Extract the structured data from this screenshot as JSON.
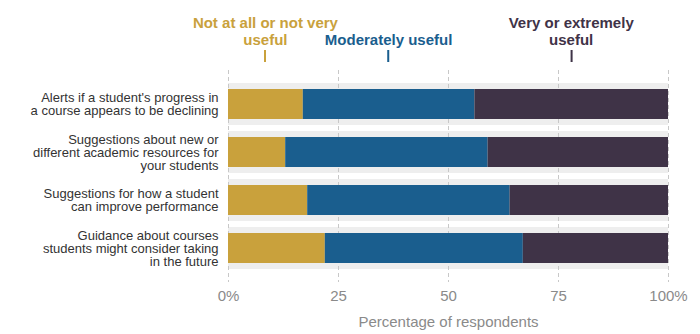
{
  "chart_data": {
    "type": "bar",
    "orientation": "horizontal",
    "stacked": true,
    "grid": true,
    "legend": "top",
    "categories": [
      "Alerts if a student's progress in a course appears to be declining",
      "Suggestions about new or different academic resources for your students",
      "Suggestions for how a student can improve performance",
      "Guidance about courses students might consider taking in the future"
    ],
    "series": [
      {
        "name": "Not at all or not very useful",
        "color": "#c9a13c",
        "values": [
          17,
          13,
          18,
          22
        ]
      },
      {
        "name": "Moderately useful",
        "color": "#1a5e8e",
        "values": [
          39,
          46,
          46,
          45
        ]
      },
      {
        "name": "Very or extremely useful",
        "color": "#3f3347",
        "values": [
          44,
          41,
          36,
          33
        ]
      }
    ],
    "xlim": [
      0,
      100
    ],
    "xticks": [
      {
        "value": 0,
        "label": "0%"
      },
      25,
      50,
      75,
      {
        "value": 100,
        "label": "100%"
      }
    ],
    "xlabel": "Percentage of respondents"
  }
}
